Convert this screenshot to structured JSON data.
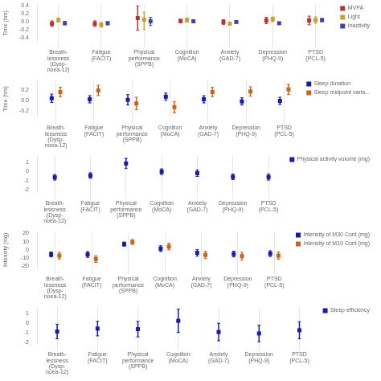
{
  "chart_data": [
    {
      "type": "errorbar",
      "categories": [
        "Breath-\nlessness\n(Dysp-\nnoea-12)",
        "Fatigue\n(FACIT)",
        "Physical\nperformance\n(SPPB)",
        "Cognition\n(MoCA)",
        "Anxiety\n(GAD-7)",
        "Depression\n(PHQ-9)",
        "PTSD\n(PCL-5)"
      ],
      "y_label": "Time (hrs)",
      "ylim": [
        -0.5,
        0.42
      ],
      "yticks": [
        -0.4,
        -0.2,
        {
          "value": 0.0,
          "label": "0.0"
        },
        0.2,
        0.4
      ],
      "grid": true,
      "legend": "upper right",
      "marker": "square",
      "series": [
        {
          "name": "MVPA",
          "color": "#c03030",
          "values": [
            -0.05,
            -0.05,
            0.09,
            0.02,
            -0.01,
            0.03,
            0.03
          ],
          "lo": [
            -0.12,
            -0.12,
            -0.22,
            -0.03,
            -0.07,
            -0.05,
            -0.08
          ],
          "hi": [
            0.02,
            0.02,
            0.4,
            0.06,
            0.05,
            0.11,
            0.14
          ]
        },
        {
          "name": "Light",
          "color": "#c8a030",
          "values": [
            0.04,
            -0.08,
            0.05,
            0.04,
            -0.05,
            0.06,
            0.04
          ],
          "lo": [
            -0.01,
            -0.14,
            -0.2,
            -0.01,
            -0.09,
            0.0,
            -0.04
          ],
          "hi": [
            0.09,
            -0.02,
            0.24,
            0.09,
            -0.01,
            0.12,
            0.12
          ]
        },
        {
          "name": "Inactivity",
          "color": "#4040b0",
          "values": [
            -0.04,
            -0.04,
            0.01,
            0.01,
            -0.01,
            -0.04,
            0.04
          ],
          "lo": [
            -0.08,
            -0.08,
            -0.1,
            -0.02,
            -0.04,
            -0.07,
            0.0
          ],
          "hi": [
            0.0,
            0.0,
            0.11,
            0.04,
            0.02,
            -0.01,
            0.08
          ]
        }
      ]
    },
    {
      "type": "errorbar",
      "categories": [
        "Breath-\nlessness\n(Dysp-\nnoea-12)",
        "Fatigue\n(FACIT)",
        "Physical\nperformance\n(SPPB)",
        "Cognition\n(MoCA)",
        "Anxiety\n(GAD-7)",
        "Depression\n(PHQ-9)",
        "PTSD\n(PCL-5)"
      ],
      "y_label": "Time (hrs)",
      "ylim": [
        -0.32,
        0.38
      ],
      "yticks": [
        -0.2,
        {
          "value": 0.0,
          "label": "0.0"
        },
        0.2
      ],
      "grid": true,
      "legend": "upper right",
      "marker": "square",
      "series": [
        {
          "name": "Sleep duration",
          "color": "#1a1aaa",
          "values": [
            0.04,
            0.02,
            0.01,
            0.07,
            0.02,
            -0.02,
            -0.01
          ],
          "lo": [
            -0.04,
            -0.05,
            -0.09,
            0.0,
            -0.05,
            -0.09,
            -0.08
          ],
          "hi": [
            0.12,
            0.09,
            0.11,
            0.14,
            0.09,
            0.05,
            0.06
          ]
        },
        {
          "name": "Sleep midpoint varia...",
          "color": "#c86420",
          "values": [
            0.16,
            0.19,
            -0.06,
            -0.13,
            0.16,
            0.17,
            0.21
          ],
          "lo": [
            0.07,
            0.09,
            -0.18,
            -0.24,
            0.07,
            0.08,
            0.11
          ],
          "hi": [
            0.25,
            0.29,
            0.06,
            -0.02,
            0.25,
            0.26,
            0.31
          ]
        }
      ]
    },
    {
      "type": "errorbar",
      "categories": [
        "Breath-\nlessness\n(Dysp-\nnoea-12)",
        "Fatigue\n(FACIT)",
        "Physical\nperformance\n(SPPB)",
        "Cognition\n(MoCA)",
        "Anxiety\n(GAD-7)",
        "Depression\n(PHQ-9)",
        "PTSD\n(PCL-5)"
      ],
      "ylim": [
        -2.3,
        1.65
      ],
      "yticks": [
        -2,
        -1,
        0,
        1
      ],
      "grid": true,
      "legend": "upper right",
      "marker": "square",
      "series": [
        {
          "name": "Physical activity\nvolume (mg)",
          "color": "#1a1aaa",
          "values": [
            -0.65,
            -0.45,
            0.85,
            -0.04,
            -0.2,
            -0.6,
            -0.62
          ],
          "lo": [
            -0.95,
            -0.75,
            0.3,
            -0.35,
            -0.55,
            -0.9,
            -0.95
          ],
          "hi": [
            -0.35,
            -0.15,
            1.4,
            0.27,
            0.15,
            -0.3,
            -0.29
          ]
        }
      ]
    },
    {
      "type": "errorbar",
      "categories": [
        "Breath-\nlessness\n(Dysp-\nnoea-12)",
        "Fatigue\n(FACIT)",
        "Physical\nperformance\n(SPPB)",
        "Cognition\n(MoCA)",
        "Anxiety\n(GAD-7)",
        "Depression\n(PHQ-9)",
        "PTSD\n(PCL-5)"
      ],
      "y_label": "Intensity (mg)",
      "ylim": [
        -22,
        22
      ],
      "yticks": [
        -20,
        -10,
        0,
        10,
        20
      ],
      "grid": true,
      "legend": "upper right",
      "marker": "square",
      "series": [
        {
          "name": "Intensity of M30 Cont\n(mg)",
          "color": "#1a1aaa",
          "values": [
            -5.5,
            -5.5,
            7.0,
            1.5,
            -3.5,
            -5.0,
            -4.5
          ],
          "lo": [
            -8.5,
            -9.0,
            4.5,
            -2.0,
            -7.5,
            -8.5,
            -8.0
          ],
          "hi": [
            -2.5,
            -2.0,
            9.5,
            5.0,
            0.5,
            -1.5,
            -1.0
          ]
        },
        {
          "name": "Intensity of M10 Cont\n(mg)",
          "color": "#c86420",
          "values": [
            -7.0,
            -11.0,
            9.5,
            4.0,
            -6.0,
            -7.5,
            -7.0
          ],
          "lo": [
            -11.0,
            -15.0,
            6.5,
            0.0,
            -10.5,
            -12.0,
            -11.5
          ],
          "hi": [
            -3.0,
            -7.0,
            12.5,
            8.0,
            -1.5,
            -3.0,
            -2.5
          ]
        }
      ]
    },
    {
      "type": "errorbar",
      "categories": [
        "Breath-\nlessness\n(Dysp-\nnoea-12)",
        "Fatigue\n(FACIT)",
        "Physical\nperformance\n(SPPB)",
        "Cognition\n(MoCA)",
        "Anxiety\n(GAD-7)",
        "Depression\n(PHQ-9)",
        "PTSD\n(PCL-5)"
      ],
      "ylim": [
        -2.1,
        1.65
      ],
      "yticks": [
        -2,
        -1,
        0,
        1
      ],
      "grid": true,
      "legend": "upper right",
      "marker": "square",
      "series": [
        {
          "name": "Sleep efficiency",
          "color": "#1a1aaa",
          "values": [
            -0.85,
            -0.55,
            -0.6,
            0.25,
            -0.9,
            -1.05,
            -0.72
          ],
          "lo": [
            -1.6,
            -1.3,
            -1.4,
            -0.95,
            -1.8,
            -1.9,
            -1.6
          ],
          "hi": [
            -0.1,
            0.2,
            0.2,
            1.45,
            -0.0,
            -0.2,
            0.16
          ]
        }
      ]
    }
  ]
}
